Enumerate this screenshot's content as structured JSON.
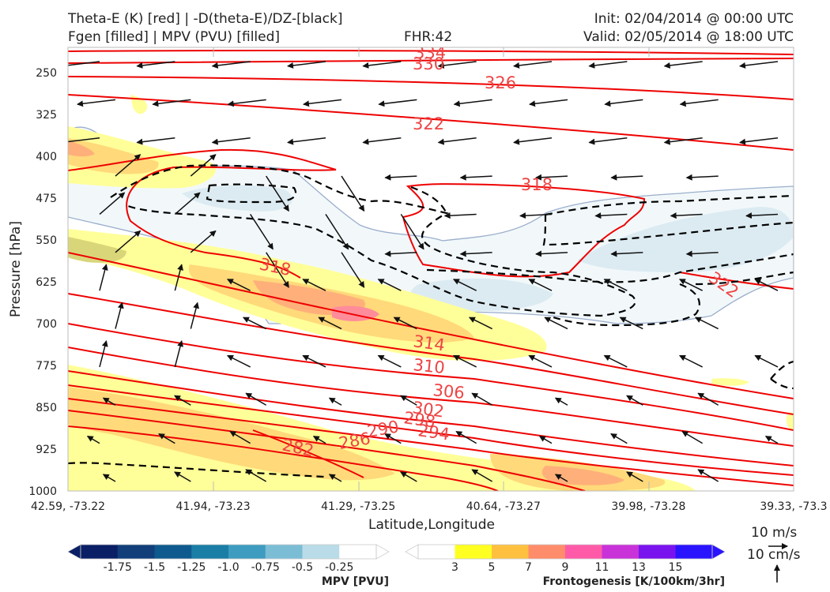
{
  "header": {
    "title_line1": "Theta-E (K) [red] | -D(theta-E)/DZ-[black]",
    "title_line2": "Fgen [filled] | MPV (PVU) [filled]",
    "fhr": "FHR:42",
    "init": "Init: 02/04/2014 @ 00:00 UTC",
    "valid": "Valid: 02/05/2014 @ 18:00 UTC"
  },
  "colors": {
    "theta_e": "#ee0000",
    "theta_e_label": "#ee4444",
    "stability": "#000000",
    "frame": "#bbbbbb"
  },
  "chart_data": {
    "type": "cross-section",
    "ylabel": "Pressure [hPa]",
    "xlabel": "Latitude,Longitude",
    "ylim": [
      1000,
      205
    ],
    "yticks": [
      250,
      325,
      400,
      475,
      550,
      625,
      700,
      775,
      850,
      925,
      1000
    ],
    "xticks": [
      "42.59, -73.22",
      "41.94, -73.23",
      "41.29, -73.25",
      "40.64, -73.27",
      "39.98, -73.28",
      "39.33, -73.3"
    ],
    "theta_e_contour_labels": [
      "334",
      "330",
      "326",
      "322",
      "318",
      "318",
      "322",
      "314",
      "310",
      "306",
      "302",
      "298",
      "294",
      "290",
      "286",
      "282"
    ],
    "mpv_colorbar": {
      "title": "MPV [PVU]",
      "ticks": [
        "-1.75",
        "-1.5",
        "-1.25",
        "-1.0",
        "-0.75",
        "-0.5",
        "-0.25"
      ],
      "colors": [
        "#0a1f66",
        "#123f7a",
        "#0e5a8e",
        "#1a7ea6",
        "#3d9cbf",
        "#7cbdd6",
        "#b9dce8",
        "#ffffff"
      ]
    },
    "fgen_colorbar": {
      "title": "Frontogenesis [K/100km/3hr]",
      "ticks": [
        "3",
        "5",
        "7",
        "9",
        "11",
        "13",
        "15"
      ],
      "colors": [
        "#ffffff",
        "#ffff22",
        "#ffc040",
        "#ff8c6a",
        "#ff5aa8",
        "#c832d8",
        "#7a14ee",
        "#2a14ff"
      ]
    },
    "wind_reference": {
      "horizontal": "10 m/s",
      "vertical": "10 cm/s"
    }
  }
}
